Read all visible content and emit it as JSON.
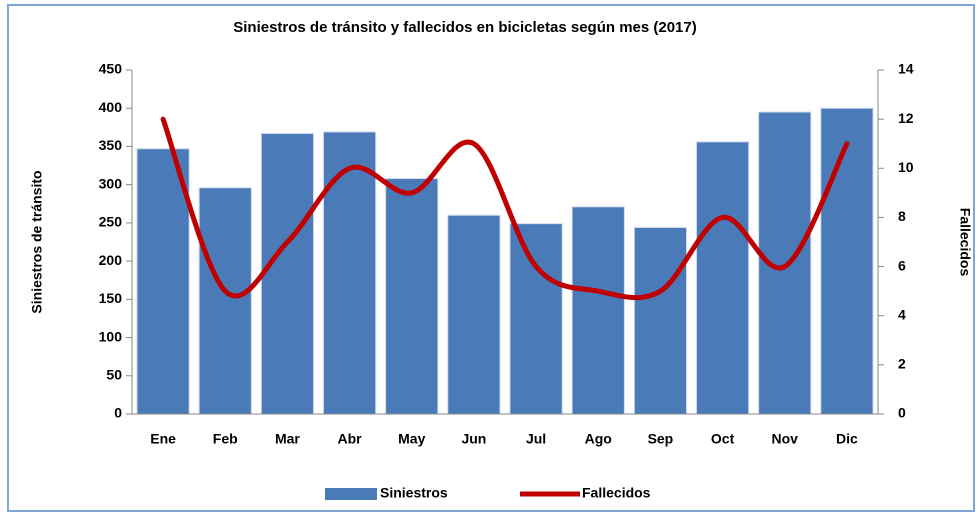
{
  "chart_data": {
    "type": "bar",
    "title": "Siniestros de tránsito y fallecidos en bicicletas según mes (2017)",
    "y_label": "Siniestros de tránsito",
    "y2_label": "Fallecidos",
    "categories": [
      "Ene",
      "Feb",
      "Mar",
      "Abr",
      "May",
      "Jun",
      "Jul",
      "Ago",
      "Sep",
      "Oct",
      "Nov",
      "Dic"
    ],
    "series": [
      {
        "name": "Siniestros",
        "type": "bar",
        "color": "#4a7ab8",
        "values": [
          347,
          296,
          367,
          369,
          308,
          260,
          249,
          271,
          244,
          356,
          395,
          400
        ]
      },
      {
        "name": "Fallecidos",
        "type": "line",
        "axis": "y2",
        "color": "#c00000",
        "smooth": true,
        "values": [
          12,
          5,
          7,
          10,
          9,
          11,
          6,
          5,
          5,
          8,
          6,
          11
        ]
      }
    ],
    "ylim": [
      0,
      450
    ],
    "yticks": [
      0,
      50,
      100,
      150,
      200,
      250,
      300,
      350,
      400,
      450
    ],
    "y2lim": [
      0,
      14
    ],
    "y2ticks": [
      0,
      2,
      4,
      6,
      8,
      10,
      12,
      14
    ],
    "legend": "bottom"
  }
}
